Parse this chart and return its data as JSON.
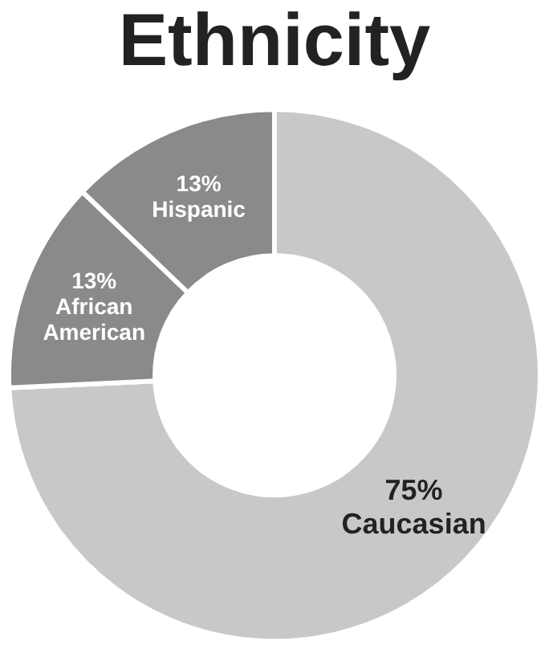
{
  "chart_data": {
    "type": "donut",
    "title": "Ethnicity",
    "categories": [
      "Caucasian",
      "African American",
      "Hispanic"
    ],
    "values": [
      75,
      13,
      13
    ],
    "colors": [
      "#c8c8c8",
      "#8a8a8a",
      "#8a8a8a"
    ],
    "value_labels": [
      "75%",
      "13%",
      "13%"
    ],
    "legend": false
  }
}
